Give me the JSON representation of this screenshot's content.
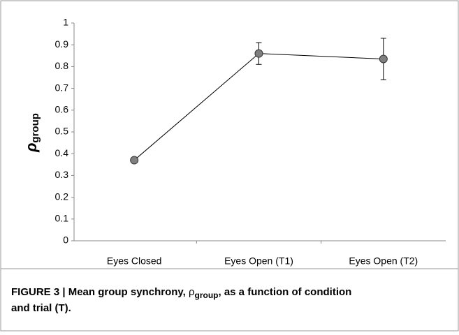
{
  "chart_data": {
    "type": "line",
    "ylabel": {
      "symbol": "ρ",
      "subscript": "group"
    },
    "categories": [
      "Eyes Closed",
      "Eyes Open (T1)",
      "Eyes Open (T2)"
    ],
    "series": [
      {
        "color": "#808080",
        "values": [
          0.37,
          0.86,
          0.835
        ],
        "errors": [
          0,
          0.05,
          0.095
        ]
      }
    ],
    "ylim": [
      0,
      1
    ],
    "yticks": [
      0,
      0.1,
      0.2,
      0.3,
      0.4,
      0.5,
      0.6,
      0.7,
      0.8,
      0.9,
      1
    ]
  },
  "caption": {
    "prefix": "FIGURE 3 | Mean group synchrony, ",
    "symbol": "ρ",
    "subscript": "group",
    "line1_end": ", as a function of condition",
    "line2": "and trial (T)."
  }
}
